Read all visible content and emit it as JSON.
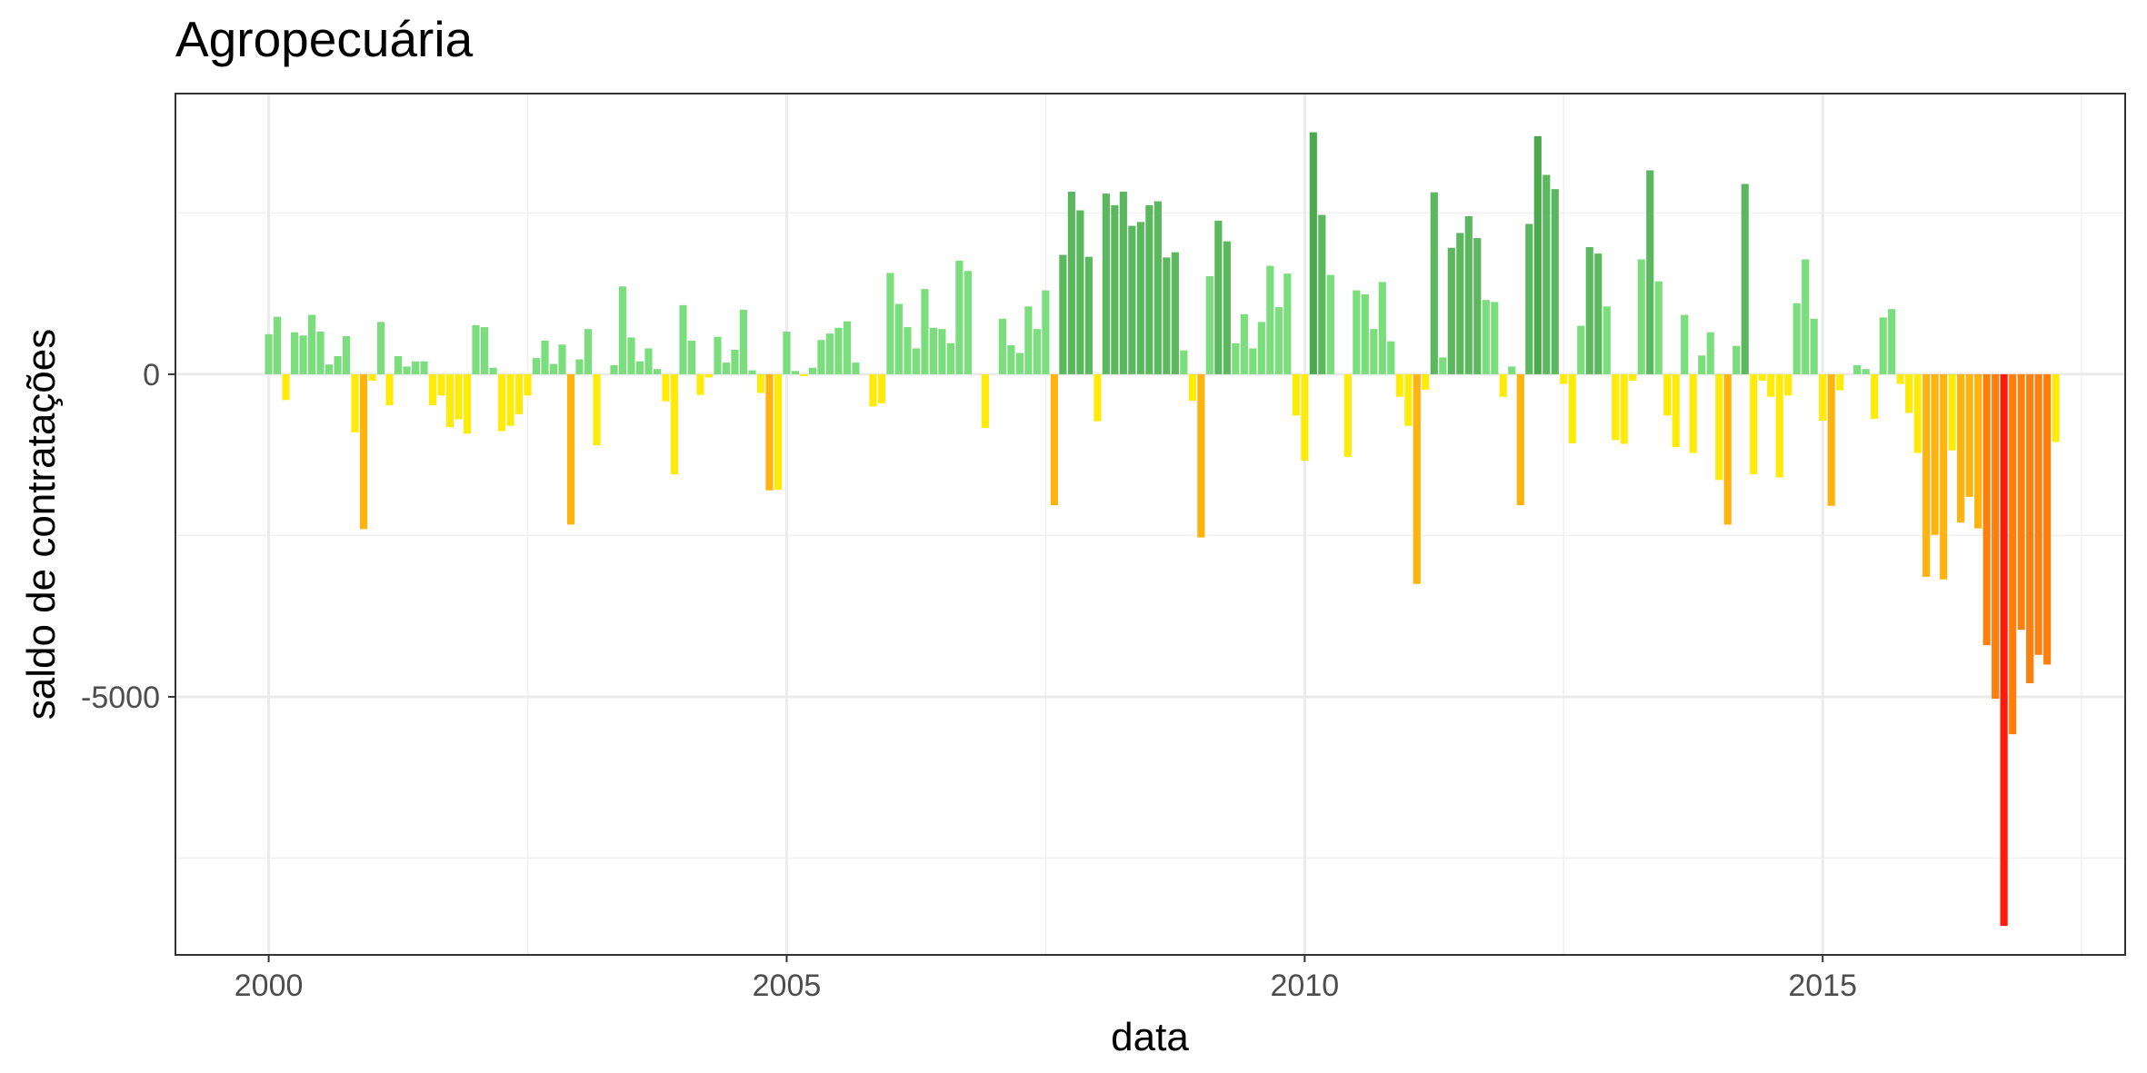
{
  "chart_data": {
    "type": "bar",
    "title": "Agropecuária",
    "xlabel": "data",
    "ylabel": "saldo de contratações",
    "xlim": [
      1999.1,
      2017.92
    ],
    "ylim": [
      -9000,
      4350
    ],
    "x_ticks": [
      2000,
      2005,
      2010,
      2015
    ],
    "x_tick_labels": [
      "2000",
      "2005",
      "2010",
      "2015"
    ],
    "y_ticks": [
      0,
      -5000
    ],
    "y_tick_labels": [
      "0",
      "-5000"
    ],
    "grid": true,
    "legend": "none",
    "color_scale": [
      "#FF1A0A",
      "#FF7F0E",
      "#FFB30F",
      "#FFEB0A",
      "#7ADE7D",
      "#5BB85E",
      "#4BAA4E"
    ],
    "x_start": "2000-01",
    "frequency": "monthly",
    "values": [
      620,
      890,
      -400,
      650,
      600,
      920,
      660,
      150,
      280,
      590,
      -900,
      -2400,
      -100,
      810,
      -480,
      280,
      120,
      200,
      200,
      -480,
      -330,
      -820,
      -700,
      -920,
      760,
      730,
      100,
      -880,
      -800,
      -620,
      -330,
      250,
      520,
      160,
      460,
      -2330,
      230,
      700,
      -1100,
      0,
      140,
      1360,
      570,
      200,
      400,
      80,
      -420,
      -1550,
      1070,
      520,
      -320,
      -50,
      580,
      180,
      380,
      1000,
      60,
      -290,
      -1800,
      -1790,
      660,
      50,
      -30,
      100,
      530,
      630,
      720,
      820,
      180,
      0,
      -500,
      -450,
      1570,
      1090,
      730,
      400,
      1320,
      720,
      700,
      480,
      1760,
      1600,
      0,
      -830,
      0,
      860,
      450,
      330,
      1050,
      700,
      1300,
      -2030,
      1850,
      2830,
      2540,
      1820,
      -730,
      2800,
      2620,
      2830,
      2300,
      2360,
      2620,
      2680,
      1810,
      1890,
      370,
      -410,
      -2530,
      1520,
      2380,
      2060,
      480,
      930,
      400,
      810,
      1680,
      1040,
      1560,
      -640,
      -1340,
      3750,
      2470,
      1540,
      0,
      -1280,
      1300,
      1240,
      700,
      1430,
      510,
      -350,
      -800,
      -3250,
      -240,
      2820,
      260,
      1960,
      2190,
      2450,
      2110,
      1150,
      1120,
      -350,
      120,
      -2030,
      2330,
      3690,
      3090,
      2870,
      -150,
      -1070,
      750,
      1970,
      1870,
      1050,
      -1020,
      -1080,
      -100,
      1780,
      3160,
      1440,
      -640,
      -1130,
      920,
      -1220,
      290,
      650,
      -1640,
      -2330,
      440,
      2950,
      -1550,
      -100,
      -350,
      -1600,
      -330,
      1100,
      1780,
      860,
      -720,
      -2040,
      -250,
      0,
      140,
      80,
      -690,
      880,
      1010,
      -150,
      -600,
      -1220,
      -3140,
      -2490,
      -3180,
      -1180,
      -2300,
      -1900,
      -2390,
      -4200,
      -5030,
      -8550,
      -5580,
      -3960,
      -4790,
      -4350,
      -4500,
      -1050
    ]
  }
}
